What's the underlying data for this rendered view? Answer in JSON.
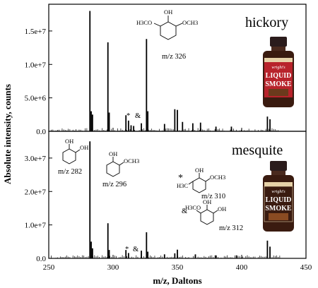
{
  "chart_data": [
    {
      "type": "bar",
      "title": "hickory",
      "xlabel": "m/z, Daltons",
      "ylabel": "Absolute intensity, counts",
      "xlim": [
        250,
        450
      ],
      "ylim": [
        0,
        19000000
      ],
      "yticks": [
        "0.0",
        "5.0e+6",
        "1.0e+7",
        "1.5e+7"
      ],
      "ytick_values": [
        0,
        5000000,
        10000000,
        15000000
      ],
      "grid": false,
      "peaks": [
        {
          "x": 282,
          "y": 18000000
        },
        {
          "x": 283,
          "y": 3000000
        },
        {
          "x": 284,
          "y": 2500000
        },
        {
          "x": 296,
          "y": 13300000
        },
        {
          "x": 297,
          "y": 2800000
        },
        {
          "x": 310,
          "y": 2400000
        },
        {
          "x": 312,
          "y": 1600000
        },
        {
          "x": 314,
          "y": 900000
        },
        {
          "x": 316,
          "y": 800000
        },
        {
          "x": 322,
          "y": 1200000
        },
        {
          "x": 326,
          "y": 13800000
        },
        {
          "x": 327,
          "y": 3000000
        },
        {
          "x": 340,
          "y": 1100000
        },
        {
          "x": 348,
          "y": 3300000
        },
        {
          "x": 350,
          "y": 3200000
        },
        {
          "x": 354,
          "y": 1400000
        },
        {
          "x": 362,
          "y": 1200000
        },
        {
          "x": 368,
          "y": 1300000
        },
        {
          "x": 380,
          "y": 700000
        },
        {
          "x": 392,
          "y": 700000
        },
        {
          "x": 420,
          "y": 2200000
        },
        {
          "x": 422,
          "y": 1800000
        }
      ],
      "annotations": [
        {
          "text": "m/z 326",
          "x": 326
        },
        {
          "text": "*",
          "x": 310
        },
        {
          "text": "&",
          "x": 312
        }
      ],
      "structure_labels": {
        "oh": "OH",
        "left": "H3CO",
        "right": "OCH3"
      }
    },
    {
      "type": "bar",
      "title": "mesquite",
      "xlabel": "m/z, Daltons",
      "ylabel": "Absolute intensity, counts",
      "xlim": [
        250,
        450
      ],
      "ylim": [
        0,
        38000000
      ],
      "yticks": [
        "0.0",
        "1.0e+7",
        "2.0e+7",
        "3.0e+7"
      ],
      "ytick_values": [
        0,
        10000000,
        20000000,
        30000000
      ],
      "xticks": [
        "250",
        "300",
        "350",
        "400",
        "450"
      ],
      "xtick_values": [
        250,
        300,
        350,
        400,
        450
      ],
      "grid": false,
      "peaks": [
        {
          "x": 282,
          "y": 35000000
        },
        {
          "x": 283,
          "y": 5000000
        },
        {
          "x": 284,
          "y": 3000000
        },
        {
          "x": 296,
          "y": 10500000
        },
        {
          "x": 297,
          "y": 2500000
        },
        {
          "x": 310,
          "y": 2500000
        },
        {
          "x": 312,
          "y": 1600000
        },
        {
          "x": 322,
          "y": 2300000
        },
        {
          "x": 326,
          "y": 7800000
        },
        {
          "x": 327,
          "y": 2000000
        },
        {
          "x": 340,
          "y": 1200000
        },
        {
          "x": 348,
          "y": 1500000
        },
        {
          "x": 350,
          "y": 2600000
        },
        {
          "x": 364,
          "y": 1200000
        },
        {
          "x": 380,
          "y": 900000
        },
        {
          "x": 396,
          "y": 900000
        },
        {
          "x": 420,
          "y": 5300000
        },
        {
          "x": 422,
          "y": 3500000
        }
      ],
      "annotations": [
        {
          "text": "*",
          "x": 310
        },
        {
          "text": "&",
          "x": 312
        }
      ],
      "structures": [
        {
          "label": "m/z 282",
          "oh1": "OH",
          "oh2": "OH"
        },
        {
          "label": "m/z 296",
          "oh": "OH",
          "sub": "OCH3"
        },
        {
          "label": "m/z 310",
          "marker": "*",
          "oh": "OH",
          "sub": "OCH3",
          "methyl": "H3C"
        },
        {
          "label": "m/z 312",
          "marker": "&",
          "oh": "OH",
          "oh2": "OH",
          "sub": "H3CO"
        }
      ]
    }
  ],
  "product": {
    "brand": "wright's",
    "line1": "LIQUID",
    "line2": "SMOKE",
    "colors": {
      "cap": "#2b1c1c",
      "label": "#b8232b",
      "liquid": "#3a1b10",
      "band": "#e6d2a8",
      "text": "#ffffff"
    }
  },
  "colors": {
    "axis": "#000000",
    "peaks": "#000000"
  }
}
